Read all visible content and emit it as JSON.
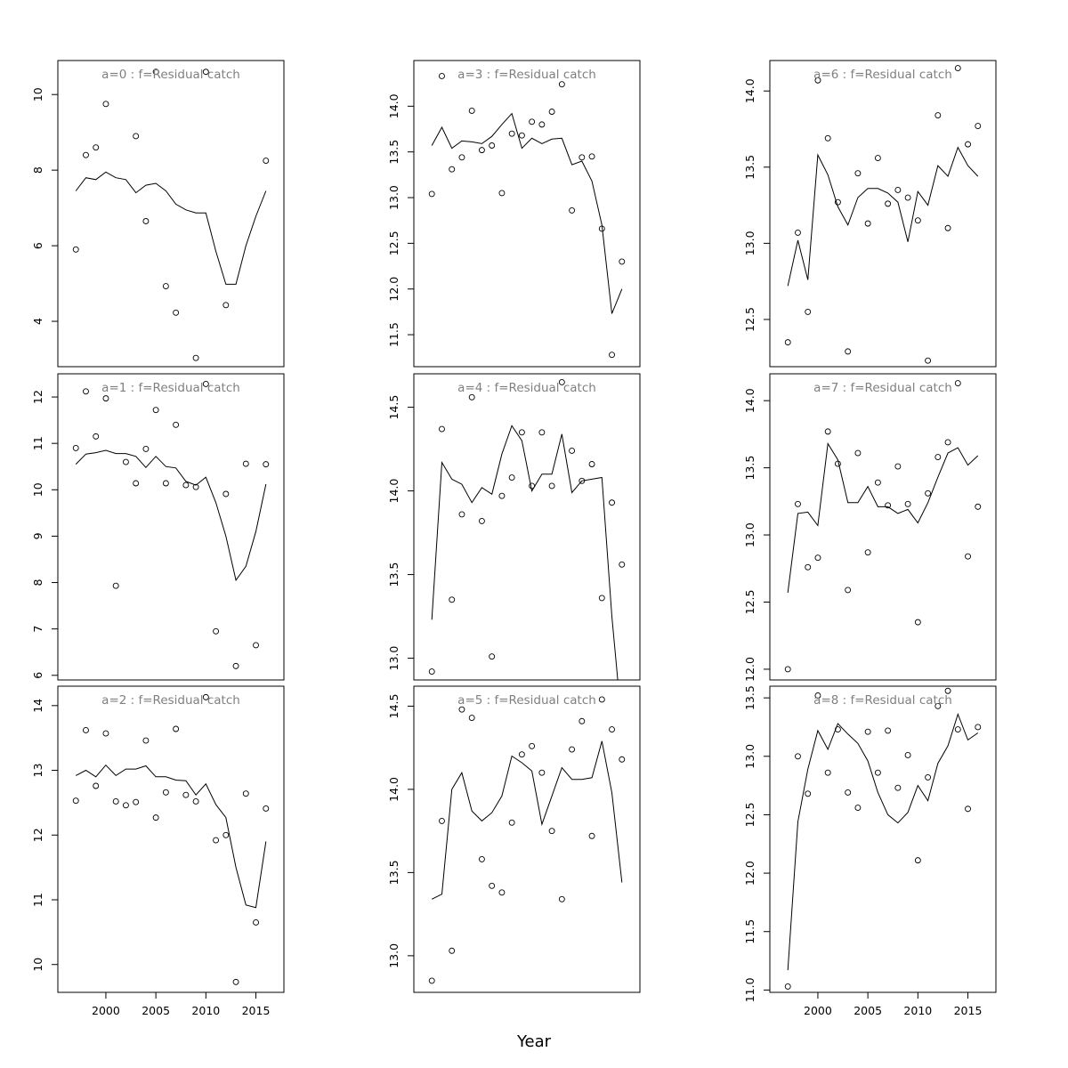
{
  "figure": {
    "xlabel": "Year"
  },
  "chart_data": [
    {
      "type": "line",
      "title": "a=0  :  f=Residual catch",
      "x": [
        1997,
        1998,
        1999,
        2000,
        2001,
        2002,
        2003,
        2004,
        2005,
        2006,
        2007,
        2008,
        2009,
        2010,
        2011,
        2012,
        2013,
        2014,
        2015,
        2016
      ],
      "fit": [
        7.45,
        7.8,
        7.75,
        7.95,
        7.8,
        7.75,
        7.4,
        7.6,
        7.65,
        7.45,
        7.1,
        6.95,
        6.87,
        6.87,
        5.85,
        4.98,
        4.98,
        6.0,
        6.78,
        7.45
      ],
      "obs": [
        5.9,
        8.4,
        8.6,
        9.75,
        null,
        null,
        8.9,
        6.65,
        10.6,
        4.93,
        4.23,
        null,
        3.03,
        10.6,
        null,
        4.43,
        null,
        null,
        null,
        8.25
      ],
      "yticks": [
        4,
        6,
        8,
        10
      ],
      "ylim": [
        2.8,
        10.9
      ],
      "xticks": [
        2000,
        2005,
        2010,
        2015
      ],
      "show_xticks": false
    },
    {
      "type": "line",
      "title": "a=1  :  f=Residual catch",
      "x": [
        1997,
        1998,
        1999,
        2000,
        2001,
        2002,
        2003,
        2004,
        2005,
        2006,
        2007,
        2008,
        2009,
        2010,
        2011,
        2012,
        2013,
        2014,
        2015,
        2016
      ],
      "fit": [
        10.55,
        10.77,
        10.8,
        10.85,
        10.78,
        10.78,
        10.72,
        10.48,
        10.72,
        10.5,
        10.47,
        10.18,
        10.1,
        10.27,
        9.72,
        9.0,
        8.05,
        8.35,
        9.1,
        10.12
      ],
      "obs": [
        10.9,
        12.12,
        11.15,
        11.97,
        7.93,
        10.6,
        10.14,
        10.88,
        11.72,
        10.14,
        11.4,
        10.1,
        10.06,
        12.28,
        6.95,
        9.91,
        6.2,
        10.56,
        6.65,
        10.55
      ],
      "yticks": [
        6,
        7,
        8,
        9,
        10,
        11,
        12
      ],
      "ylim": [
        5.9,
        12.5
      ],
      "xticks": [
        2000,
        2005,
        2010,
        2015
      ],
      "show_xticks": false
    },
    {
      "type": "line",
      "title": "a=2  :  f=Residual catch",
      "x": [
        1997,
        1998,
        1999,
        2000,
        2001,
        2002,
        2003,
        2004,
        2005,
        2006,
        2007,
        2008,
        2009,
        2010,
        2011,
        2012,
        2013,
        2014,
        2015,
        2016
      ],
      "fit": [
        12.92,
        13.0,
        12.9,
        13.08,
        12.92,
        13.02,
        13.02,
        13.07,
        12.9,
        12.9,
        12.85,
        12.84,
        12.62,
        12.79,
        12.47,
        12.27,
        11.5,
        10.92,
        10.88,
        11.9
      ],
      "obs": [
        12.53,
        13.62,
        12.76,
        13.57,
        12.52,
        12.46,
        12.51,
        13.46,
        12.27,
        12.66,
        13.64,
        12.62,
        12.52,
        14.13,
        11.92,
        12.0,
        9.73,
        12.64,
        10.65,
        12.41
      ],
      "yticks": [
        10,
        11,
        12,
        13,
        14
      ],
      "ylim": [
        9.57,
        14.3
      ],
      "xticks": [
        2000,
        2005,
        2010,
        2015
      ],
      "show_xticks": true
    },
    {
      "type": "line",
      "title": "a=3  :  f=Residual catch",
      "x": [
        1997,
        1998,
        1999,
        2000,
        2001,
        2002,
        2003,
        2004,
        2005,
        2006,
        2007,
        2008,
        2009,
        2010,
        2011,
        2012,
        2013,
        2014,
        2015,
        2016
      ],
      "fit": [
        13.57,
        13.77,
        13.54,
        13.62,
        13.61,
        13.59,
        13.67,
        13.8,
        13.92,
        13.54,
        13.65,
        13.59,
        13.64,
        13.65,
        13.36,
        13.4,
        13.18,
        12.7,
        11.73,
        12.0
      ],
      "obs": [
        13.04,
        14.33,
        13.31,
        13.44,
        13.95,
        13.52,
        13.57,
        13.05,
        13.7,
        13.68,
        13.83,
        13.8,
        13.94,
        14.24,
        12.86,
        13.44,
        13.45,
        12.66,
        11.28,
        12.3
      ],
      "yticks": [
        11.5,
        12.0,
        12.5,
        13.0,
        13.5,
        14.0
      ],
      "ylim": [
        11.15,
        14.5
      ],
      "xticks": [
        2000,
        2005,
        2010,
        2015
      ],
      "show_xticks": false
    },
    {
      "type": "line",
      "title": "a=4  :  f=Residual catch",
      "x": [
        1997,
        1998,
        1999,
        2000,
        2001,
        2002,
        2003,
        2004,
        2005,
        2006,
        2007,
        2008,
        2009,
        2010,
        2011,
        2012,
        2013,
        2014,
        2015,
        2016
      ],
      "fit": [
        13.23,
        14.17,
        14.07,
        14.04,
        13.93,
        14.02,
        13.98,
        14.22,
        14.39,
        14.3,
        14.0,
        14.1,
        14.1,
        14.34,
        13.99,
        14.06,
        14.07,
        14.08,
        13.25,
        12.6
      ],
      "obs": [
        12.92,
        14.37,
        13.35,
        13.86,
        14.56,
        13.82,
        13.01,
        13.97,
        14.08,
        14.35,
        14.03,
        14.35,
        14.03,
        14.65,
        14.24,
        14.06,
        14.16,
        13.36,
        13.93,
        13.56
      ],
      "yticks": [
        13.0,
        13.5,
        14.0,
        14.5
      ],
      "ylim": [
        12.87,
        14.7
      ],
      "xticks": [
        2000,
        2005,
        2010,
        2015
      ],
      "show_xticks": false
    },
    {
      "type": "line",
      "title": "a=5  :  f=Residual catch",
      "x": [
        1997,
        1998,
        1999,
        2000,
        2001,
        2002,
        2003,
        2004,
        2005,
        2006,
        2007,
        2008,
        2009,
        2010,
        2011,
        2012,
        2013,
        2014,
        2015,
        2016
      ],
      "fit": [
        13.34,
        13.37,
        14.0,
        14.1,
        13.87,
        13.81,
        13.86,
        13.96,
        14.2,
        14.16,
        14.11,
        13.79,
        13.96,
        14.13,
        14.06,
        14.06,
        14.07,
        14.29,
        13.98,
        13.44
      ],
      "obs": [
        12.85,
        13.81,
        13.03,
        14.48,
        14.43,
        13.58,
        13.42,
        13.38,
        13.8,
        14.21,
        14.26,
        14.1,
        13.75,
        13.34,
        14.24,
        14.41,
        13.72,
        14.54,
        14.36,
        14.18
      ],
      "yticks": [
        13.0,
        13.5,
        14.0,
        14.5
      ],
      "ylim": [
        12.78,
        14.62
      ],
      "xticks": [
        2000,
        2005,
        2010,
        2015
      ],
      "show_xticks": false
    },
    {
      "type": "line",
      "title": "a=6  :  f=Residual catch",
      "x": [
        1997,
        1998,
        1999,
        2000,
        2001,
        2002,
        2003,
        2004,
        2005,
        2006,
        2007,
        2008,
        2009,
        2010,
        2011,
        2012,
        2013,
        2014,
        2015,
        2016
      ],
      "fit": [
        12.72,
        13.02,
        12.76,
        13.58,
        13.45,
        13.24,
        13.12,
        13.3,
        13.36,
        13.36,
        13.33,
        13.27,
        13.01,
        13.34,
        13.25,
        13.51,
        13.44,
        13.63,
        13.51,
        13.44
      ],
      "obs": [
        12.35,
        13.07,
        12.55,
        14.07,
        13.69,
        13.27,
        12.29,
        13.46,
        13.13,
        13.56,
        13.26,
        13.35,
        13.3,
        13.15,
        12.23,
        13.84,
        13.1,
        14.15,
        13.65,
        13.77
      ],
      "yticks": [
        12.5,
        13.0,
        13.5,
        14.0
      ],
      "ylim": [
        12.19,
        14.2
      ],
      "xticks": [
        2000,
        2005,
        2010,
        2015
      ],
      "show_xticks": false
    },
    {
      "type": "line",
      "title": "a=7  :  f=Residual catch",
      "x": [
        1997,
        1998,
        1999,
        2000,
        2001,
        2002,
        2003,
        2004,
        2005,
        2006,
        2007,
        2008,
        2009,
        2010,
        2011,
        2012,
        2013,
        2014,
        2015,
        2016
      ],
      "fit": [
        12.57,
        13.16,
        13.17,
        13.07,
        13.68,
        13.56,
        13.24,
        13.24,
        13.36,
        13.21,
        13.21,
        13.16,
        13.19,
        13.09,
        13.24,
        13.43,
        13.61,
        13.65,
        13.52,
        13.59
      ],
      "obs": [
        12.0,
        13.23,
        12.76,
        12.83,
        13.77,
        13.53,
        12.59,
        13.61,
        12.87,
        13.39,
        13.22,
        13.51,
        13.23,
        12.35,
        13.31,
        13.58,
        13.69,
        14.13,
        12.84,
        13.21
      ],
      "yticks": [
        12.0,
        12.5,
        13.0,
        13.5,
        14.0
      ],
      "ylim": [
        11.92,
        14.2
      ],
      "xticks": [
        2000,
        2005,
        2010,
        2015
      ],
      "show_xticks": false
    },
    {
      "type": "line",
      "title": "a=8  :  f=Residual catch",
      "x": [
        1997,
        1998,
        1999,
        2000,
        2001,
        2002,
        2003,
        2004,
        2005,
        2006,
        2007,
        2008,
        2009,
        2010,
        2011,
        2012,
        2013,
        2014,
        2015,
        2016
      ],
      "fit": [
        11.17,
        12.44,
        12.89,
        13.22,
        13.06,
        13.28,
        13.19,
        13.11,
        12.96,
        12.69,
        12.5,
        12.43,
        12.52,
        12.75,
        12.62,
        12.94,
        13.09,
        13.36,
        13.14,
        13.2
      ],
      "obs": [
        11.03,
        13.0,
        12.68,
        13.52,
        12.86,
        13.23,
        12.69,
        12.56,
        13.21,
        12.86,
        13.22,
        12.73,
        13.01,
        12.11,
        12.82,
        13.43,
        13.56,
        13.23,
        12.55,
        13.25
      ],
      "yticks": [
        11.0,
        11.5,
        12.0,
        12.5,
        13.0,
        13.5
      ],
      "ylim": [
        10.98,
        13.6
      ],
      "xticks": [
        2000,
        2005,
        2010,
        2015
      ],
      "show_xticks": true
    }
  ]
}
